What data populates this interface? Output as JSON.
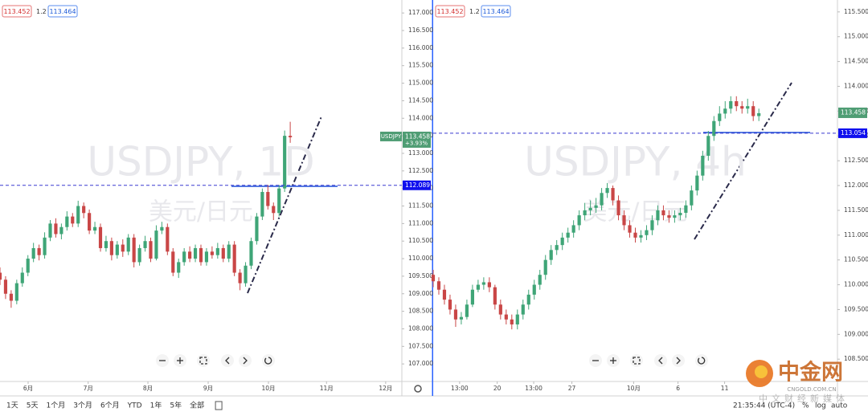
{
  "chart_data": [
    {
      "type": "candlestick",
      "symbol_watermark": "USDJPY, 1D",
      "name_watermark": "美元/日元",
      "legend": {
        "bid": 113.452,
        "spread": 1.2,
        "ask": 113.464
      },
      "up_color": "#3fa577",
      "down_color": "#c94646",
      "symbol_label": "USDJPY",
      "last_price": 113.458,
      "change": {
        "value": 3.93,
        "label": "+3.93%"
      },
      "hline": 112.089,
      "xlim": [
        0,
        72
      ],
      "ylim": [
        106.5,
        117.37
      ],
      "xticks": [
        {
          "value": 5.04,
          "label": "6月"
        },
        {
          "value": 15.8,
          "label": "7月"
        },
        {
          "value": 26.5,
          "label": "8月"
        },
        {
          "value": 37.3,
          "label": "9月"
        },
        {
          "value": 48.1,
          "label": "10月"
        },
        {
          "value": 58.5,
          "label": "11月"
        },
        {
          "value": 69.1,
          "label": "12月"
        }
      ],
      "yticks": [
        {
          "value": 107,
          "label": "107.000"
        },
        {
          "value": 107.5,
          "label": "107.500"
        },
        {
          "value": 108,
          "label": "108.000"
        },
        {
          "value": 108.5,
          "label": "108.500"
        },
        {
          "value": 109,
          "label": "109.000"
        },
        {
          "value": 109.5,
          "label": "109.500"
        },
        {
          "value": 110,
          "label": "110.000"
        },
        {
          "value": 110.5,
          "label": "110.500"
        },
        {
          "value": 111,
          "label": "111.000"
        },
        {
          "value": 111.5,
          "label": "111.500"
        },
        {
          "value": 112,
          "label": "112.000"
        },
        {
          "value": 112.5,
          "label": "112.500"
        },
        {
          "value": 113,
          "label": "113.000"
        },
        {
          "value": 113.5,
          "label": "113.500"
        },
        {
          "value": 114,
          "label": "114.000"
        },
        {
          "value": 114.5,
          "label": "114.500"
        },
        {
          "value": 115,
          "label": "115.000"
        },
        {
          "value": 115.5,
          "label": "115.500"
        },
        {
          "value": 116,
          "label": "116.000"
        },
        {
          "value": 116.5,
          "label": "116.500"
        },
        {
          "value": 117,
          "label": "117.000"
        }
      ],
      "ohlc": [
        [
          109.6,
          109.75,
          109.25,
          109.4
        ],
        [
          109.4,
          109.5,
          108.85,
          109.0
        ],
        [
          109.0,
          109.1,
          108.6,
          108.8
        ],
        [
          108.8,
          109.4,
          108.7,
          109.3
        ],
        [
          109.3,
          109.75,
          109.2,
          109.6
        ],
        [
          109.6,
          110.1,
          109.5,
          110.0
        ],
        [
          110.0,
          110.45,
          109.9,
          110.3
        ],
        [
          110.3,
          110.4,
          109.95,
          110.1
        ],
        [
          110.1,
          110.75,
          110.0,
          110.6
        ],
        [
          110.6,
          111.1,
          110.5,
          111.0
        ],
        [
          111.0,
          111.15,
          110.6,
          110.7
        ],
        [
          110.7,
          111.0,
          110.55,
          110.9
        ],
        [
          110.9,
          111.35,
          110.8,
          111.2
        ],
        [
          111.2,
          111.3,
          110.9,
          111.0
        ],
        [
          111.0,
          111.65,
          110.9,
          111.5
        ],
        [
          111.5,
          111.6,
          111.15,
          111.3
        ],
        [
          111.3,
          111.4,
          110.7,
          110.8
        ],
        [
          110.8,
          111.05,
          110.7,
          110.9
        ],
        [
          110.9,
          111.0,
          110.2,
          110.3
        ],
        [
          110.3,
          110.65,
          110.2,
          110.5
        ],
        [
          110.5,
          110.6,
          109.95,
          110.1
        ],
        [
          110.1,
          110.5,
          110.0,
          110.4
        ],
        [
          110.4,
          110.55,
          110.05,
          110.2
        ],
        [
          110.2,
          110.7,
          110.1,
          110.6
        ],
        [
          110.6,
          110.7,
          109.75,
          109.9
        ],
        [
          109.9,
          110.4,
          109.8,
          110.3
        ],
        [
          110.3,
          110.65,
          110.2,
          110.5
        ],
        [
          110.5,
          110.6,
          109.9,
          110.0
        ],
        [
          110.0,
          110.95,
          109.95,
          110.8
        ],
        [
          110.8,
          111.05,
          110.7,
          110.9
        ],
        [
          110.9,
          111.0,
          110.1,
          110.2
        ],
        [
          110.2,
          110.3,
          109.5,
          109.6
        ],
        [
          109.6,
          110.0,
          109.45,
          109.9
        ],
        [
          109.9,
          110.3,
          109.8,
          110.2
        ],
        [
          110.2,
          110.35,
          109.9,
          110.0
        ],
        [
          110.0,
          110.4,
          109.9,
          110.3
        ],
        [
          110.3,
          110.4,
          109.8,
          109.9
        ],
        [
          109.9,
          110.3,
          109.8,
          110.2
        ],
        [
          110.2,
          110.35,
          110.0,
          110.1
        ],
        [
          110.1,
          110.45,
          110.0,
          110.3
        ],
        [
          110.3,
          110.4,
          109.9,
          110.0
        ],
        [
          110.0,
          110.5,
          109.9,
          110.4
        ],
        [
          110.4,
          110.5,
          109.5,
          109.6
        ],
        [
          109.6,
          109.7,
          109.1,
          109.3
        ],
        [
          109.3,
          109.9,
          109.2,
          109.8
        ],
        [
          109.8,
          110.6,
          109.7,
          110.5
        ],
        [
          110.5,
          111.3,
          110.4,
          111.2
        ],
        [
          111.2,
          112.0,
          111.1,
          111.9
        ],
        [
          111.9,
          112.1,
          111.4,
          111.5
        ],
        [
          111.5,
          111.6,
          111.1,
          111.3
        ],
        [
          111.3,
          112.1,
          111.2,
          112.0
        ],
        [
          112.0,
          113.65,
          111.9,
          113.5
        ],
        [
          113.5,
          113.9,
          113.3,
          113.458
        ]
      ]
    },
    {
      "type": "candlestick",
      "symbol_watermark": "USDJPY, 4h",
      "name_watermark": "美元/日元",
      "legend": {
        "bid": 113.452,
        "spread": 1.2,
        "ask": 113.464
      },
      "up_color": "#3fa577",
      "down_color": "#c94646",
      "last_price": 113.458,
      "hline": 113.054,
      "xlim": [
        0,
        72
      ],
      "ylim": [
        108.05,
        115.74
      ],
      "xticks": [
        {
          "value": 4.7,
          "label": "13:00"
        },
        {
          "value": 11.4,
          "label": "20"
        },
        {
          "value": 17.9,
          "label": "13:00"
        },
        {
          "value": 24.7,
          "label": "27"
        },
        {
          "value": 35.7,
          "label": "10月"
        },
        {
          "value": 43.6,
          "label": "6"
        },
        {
          "value": 51.9,
          "label": "11"
        }
      ],
      "yticks": [
        {
          "value": 108.5,
          "label": "108.500"
        },
        {
          "value": 109,
          "label": "109.000"
        },
        {
          "value": 109.5,
          "label": "109.500"
        },
        {
          "value": 110,
          "label": "110.000"
        },
        {
          "value": 110.5,
          "label": "110.500"
        },
        {
          "value": 111,
          "label": "111.000"
        },
        {
          "value": 111.5,
          "label": "111.500"
        },
        {
          "value": 112,
          "label": "112.000"
        },
        {
          "value": 112.5,
          "label": "112.500"
        },
        {
          "value": 113,
          "label": "113.000"
        },
        {
          "value": 113.5,
          "label": "113.500"
        },
        {
          "value": 114,
          "label": "114.000"
        },
        {
          "value": 114.5,
          "label": "114.500"
        },
        {
          "value": 115,
          "label": "115.000"
        },
        {
          "value": 115.5,
          "label": "115.500"
        }
      ],
      "ohlc": [
        [
          110.2,
          110.3,
          109.95,
          110.07
        ],
        [
          110.07,
          110.15,
          109.8,
          109.9
        ],
        [
          109.9,
          110.0,
          109.6,
          109.7
        ],
        [
          109.7,
          109.8,
          109.4,
          109.5
        ],
        [
          109.5,
          109.6,
          109.15,
          109.3
        ],
        [
          109.3,
          109.45,
          109.2,
          109.35
        ],
        [
          109.35,
          109.7,
          109.3,
          109.6
        ],
        [
          109.6,
          110.0,
          109.55,
          109.9
        ],
        [
          109.9,
          110.1,
          109.85,
          110.0
        ],
        [
          110.0,
          110.15,
          109.9,
          110.05
        ],
        [
          110.05,
          110.15,
          109.85,
          109.95
        ],
        [
          109.95,
          110.0,
          109.5,
          109.6
        ],
        [
          109.6,
          109.7,
          109.3,
          109.4
        ],
        [
          109.4,
          109.5,
          109.2,
          109.3
        ],
        [
          109.3,
          109.4,
          109.1,
          109.2
        ],
        [
          109.2,
          109.5,
          109.1,
          109.4
        ],
        [
          109.4,
          109.7,
          109.3,
          109.6
        ],
        [
          109.6,
          109.9,
          109.5,
          109.8
        ],
        [
          109.8,
          110.1,
          109.7,
          110.0
        ],
        [
          110.0,
          110.3,
          109.9,
          110.2
        ],
        [
          110.2,
          110.6,
          110.1,
          110.5
        ],
        [
          110.5,
          110.8,
          110.4,
          110.7
        ],
        [
          110.7,
          110.9,
          110.6,
          110.8
        ],
        [
          110.8,
          111.05,
          110.7,
          110.95
        ],
        [
          110.95,
          111.15,
          110.85,
          111.05
        ],
        [
          111.05,
          111.3,
          110.95,
          111.2
        ],
        [
          111.2,
          111.5,
          111.1,
          111.4
        ],
        [
          111.4,
          111.65,
          111.3,
          111.5
        ],
        [
          111.5,
          111.7,
          111.4,
          111.55
        ],
        [
          111.55,
          111.75,
          111.45,
          111.6
        ],
        [
          111.6,
          111.95,
          111.5,
          111.85
        ],
        [
          111.85,
          112.05,
          111.75,
          111.95
        ],
        [
          111.95,
          112.0,
          111.6,
          111.7
        ],
        [
          111.7,
          111.8,
          111.3,
          111.4
        ],
        [
          111.4,
          111.5,
          111.1,
          111.2
        ],
        [
          111.2,
          111.3,
          110.95,
          111.05
        ],
        [
          111.05,
          111.15,
          110.85,
          110.95
        ],
        [
          110.95,
          111.1,
          110.85,
          111.0
        ],
        [
          111.0,
          111.2,
          110.9,
          111.1
        ],
        [
          111.1,
          111.4,
          111.0,
          111.3
        ],
        [
          111.3,
          111.6,
          111.2,
          111.5
        ],
        [
          111.5,
          111.6,
          111.3,
          111.4
        ],
        [
          111.4,
          111.5,
          111.25,
          111.35
        ],
        [
          111.35,
          111.5,
          111.25,
          111.4
        ],
        [
          111.4,
          111.55,
          111.3,
          111.45
        ],
        [
          111.45,
          111.7,
          111.35,
          111.6
        ],
        [
          111.6,
          112.0,
          111.5,
          111.9
        ],
        [
          111.9,
          112.3,
          111.8,
          112.2
        ],
        [
          112.2,
          112.7,
          112.1,
          112.6
        ],
        [
          112.6,
          113.1,
          112.5,
          113.0
        ],
        [
          113.0,
          113.4,
          112.9,
          113.3
        ],
        [
          113.3,
          113.6,
          113.2,
          113.45
        ],
        [
          113.45,
          113.7,
          113.35,
          113.55
        ],
        [
          113.55,
          113.8,
          113.45,
          113.7
        ],
        [
          113.7,
          113.8,
          113.5,
          113.6
        ],
        [
          113.6,
          113.7,
          113.45,
          113.55
        ],
        [
          113.55,
          113.75,
          113.45,
          113.6
        ],
        [
          113.6,
          113.7,
          113.3,
          113.4
        ],
        [
          113.4,
          113.55,
          113.3,
          113.458
        ]
      ]
    }
  ],
  "toolbar": {
    "ranges": [
      "1天",
      "5天",
      "1个月",
      "3个月",
      "6个月",
      "YTD",
      "1年",
      "5年",
      "全部"
    ],
    "time": "21:35:44 (UTC-4)",
    "options": [
      "%",
      "log",
      "auto"
    ]
  },
  "logo": {
    "name": "中金网",
    "domain": "CNGOLD.COM.CN",
    "tagline": "中文财经新媒体"
  }
}
